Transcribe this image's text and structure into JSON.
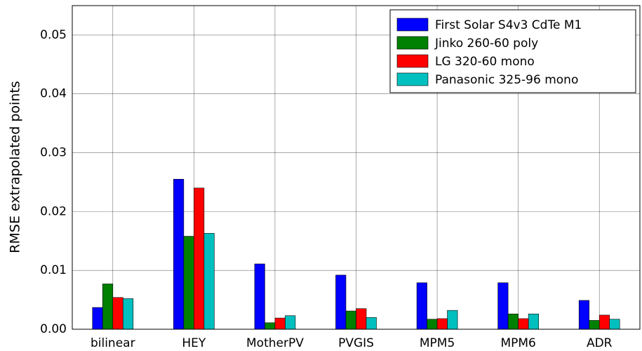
{
  "chart_data": {
    "type": "bar",
    "ylabel": "RMSE extrapolated points",
    "categories": [
      "bilinear",
      "HEY",
      "MotherPV",
      "PVGIS",
      "MPM5",
      "MPM6",
      "ADR"
    ],
    "series": [
      {
        "name": "First Solar S4v3 CdTe M1",
        "color": "#0000ff",
        "values": [
          0.0037,
          0.0255,
          0.0111,
          0.0092,
          0.0079,
          0.0079,
          0.0049
        ]
      },
      {
        "name": "Jinko 260-60 poly",
        "color": "#008000",
        "values": [
          0.0077,
          0.0158,
          0.0011,
          0.0031,
          0.0017,
          0.0026,
          0.0015
        ]
      },
      {
        "name": "LG 320-60 mono",
        "color": "#ff0000",
        "values": [
          0.0054,
          0.024,
          0.0019,
          0.0035,
          0.0018,
          0.0018,
          0.0024
        ]
      },
      {
        "name": "Panasonic 325-96 mono",
        "color": "#00bfbf",
        "values": [
          0.0052,
          0.0163,
          0.0023,
          0.002,
          0.0032,
          0.0026,
          0.0017
        ]
      }
    ],
    "ylim": [
      0,
      0.055
    ],
    "yticks": [
      {
        "value": 0,
        "label": "0.00"
      },
      0.01,
      0.02,
      0.03,
      0.04,
      0.05
    ],
    "grid": true,
    "legend": "upper right"
  }
}
